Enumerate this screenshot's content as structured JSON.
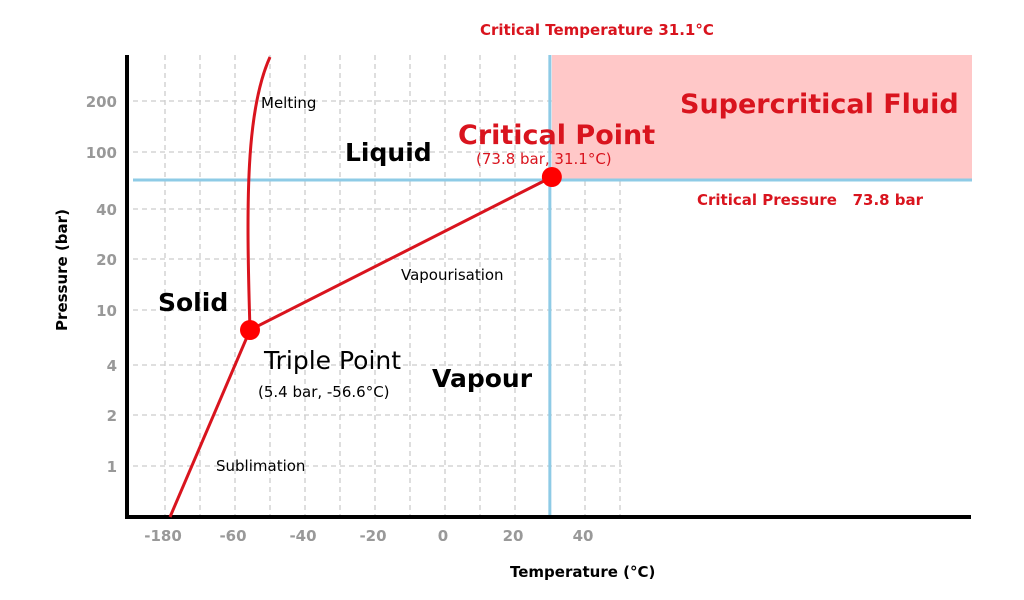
{
  "chart_data": {
    "type": "line",
    "xlabel": "Temperature (°C)",
    "ylabel": "Pressure (bar)",
    "x_ticks": [
      "-180",
      "-60",
      "-40",
      "-20",
      "0",
      "20",
      "40"
    ],
    "y_ticks": [
      "1",
      "2",
      "4",
      "10",
      "20",
      "40",
      "100",
      "200"
    ],
    "grid": true,
    "colors": {
      "curve": "#d9141e",
      "point": "#ff0000",
      "critical_lines": "#8ecbe6",
      "supercritical_fill": "#ffc8c8",
      "annotation": "#d9141e"
    },
    "points": [
      {
        "name": "Triple Point",
        "label": "(5.4 bar, -56.6°C)",
        "pressure_bar": 5.4,
        "temperature_c": -56.6
      },
      {
        "name": "Critical Point",
        "label": "(73.8 bar, 31.1°C)",
        "pressure_bar": 73.8,
        "temperature_c": 31.1
      }
    ],
    "curves": [
      "Melting",
      "Vapourisation",
      "Sublimation"
    ],
    "regions": [
      "Solid",
      "Liquid",
      "Vapour",
      "Supercritical Fluid"
    ],
    "annotations": {
      "critical_temperature": "Critical Temperature  31.1°C",
      "critical_pressure": "Critical Pressure   73.8 bar"
    }
  }
}
